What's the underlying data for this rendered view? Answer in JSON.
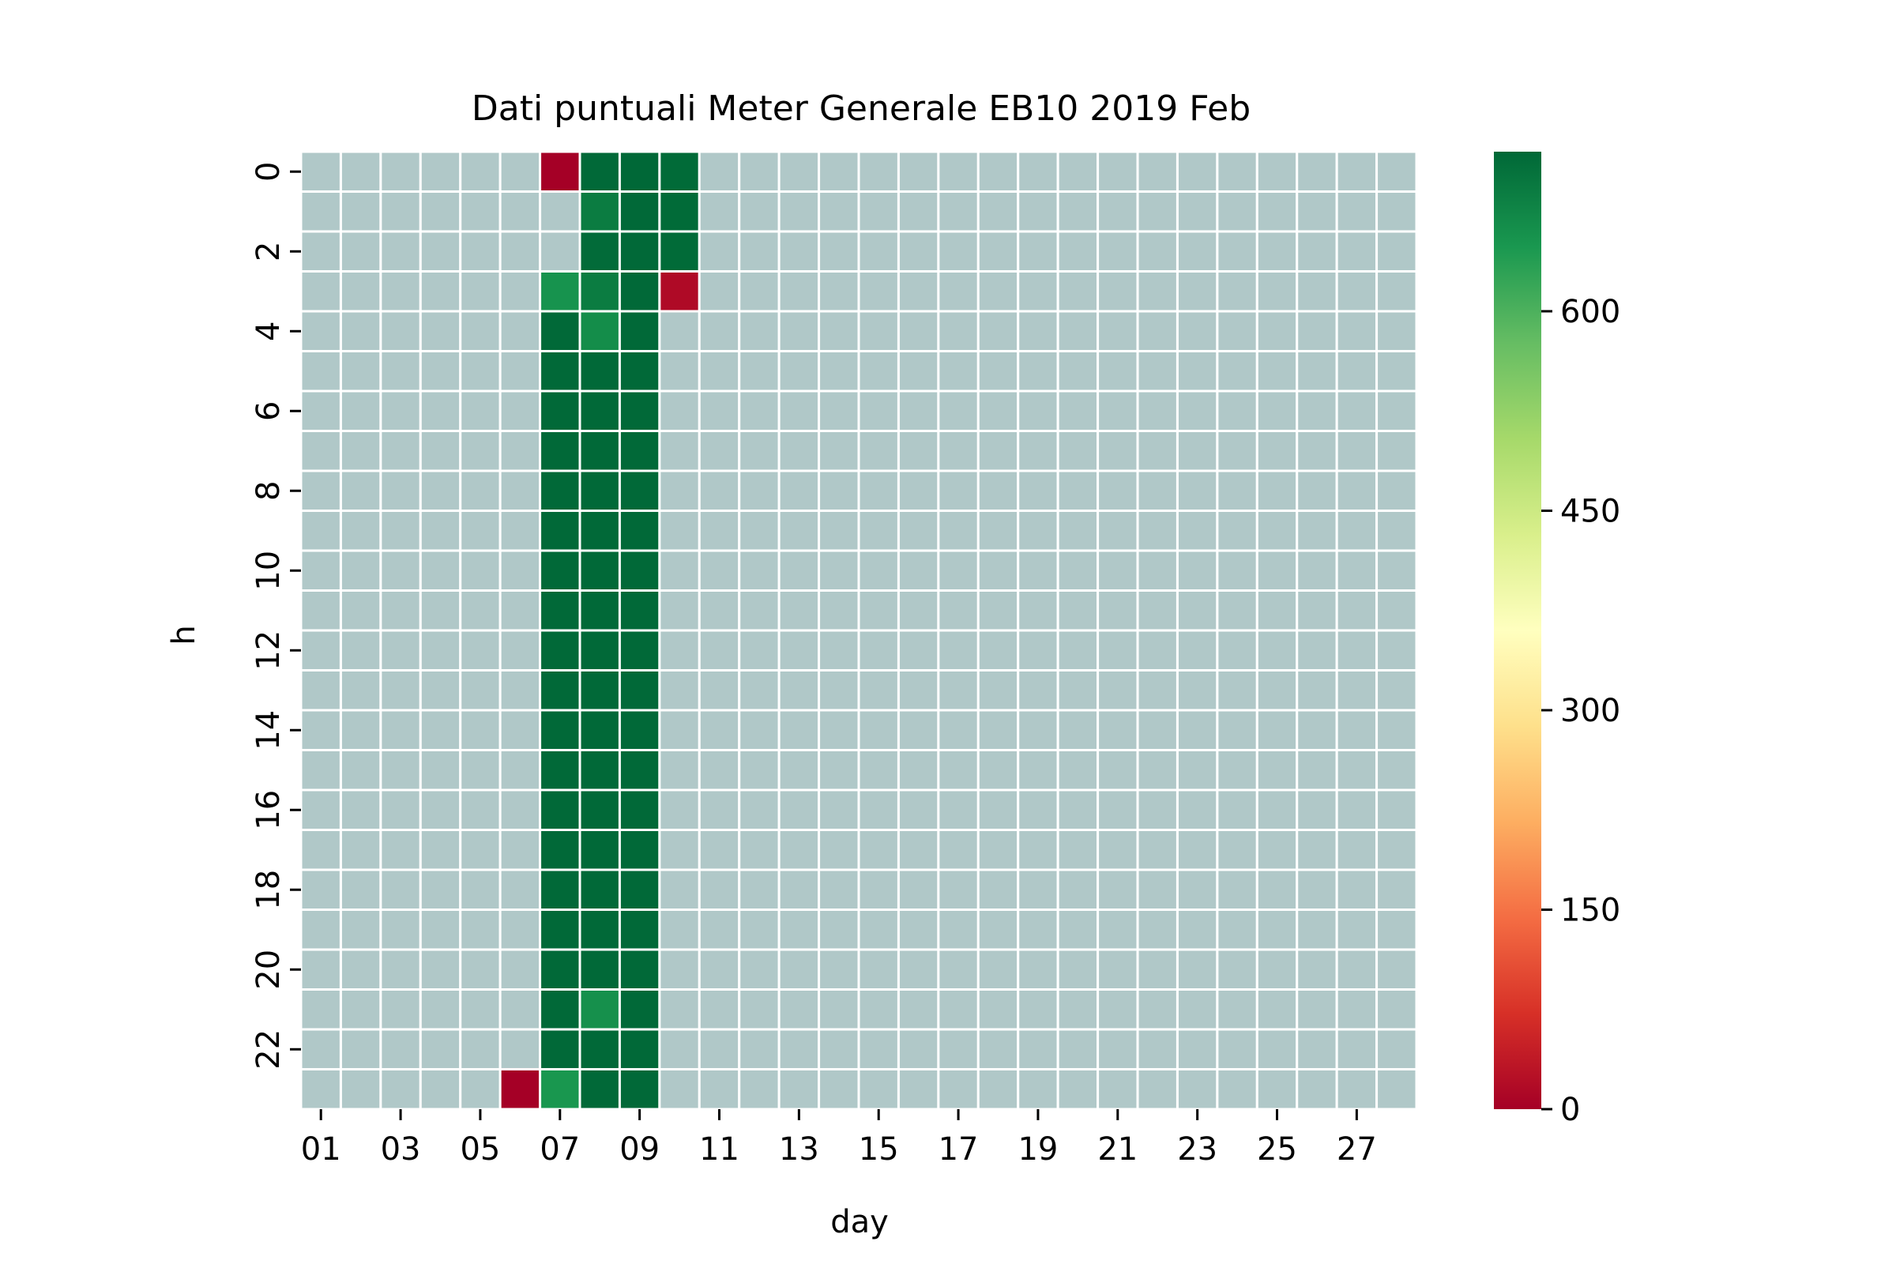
{
  "chart_data": {
    "type": "heatmap",
    "title": "Dati puntuali Meter Generale EB10 2019 Feb",
    "xlabel": "day",
    "ylabel": "h",
    "x_categories": [
      "01",
      "02",
      "03",
      "04",
      "05",
      "06",
      "07",
      "08",
      "09",
      "10",
      "11",
      "12",
      "13",
      "14",
      "15",
      "16",
      "17",
      "18",
      "19",
      "20",
      "21",
      "22",
      "23",
      "24",
      "25",
      "26",
      "27",
      "28"
    ],
    "x_tick_labels": [
      "01",
      "03",
      "05",
      "07",
      "09",
      "11",
      "13",
      "15",
      "17",
      "19",
      "21",
      "23",
      "25",
      "27"
    ],
    "y_categories": [
      "0",
      "1",
      "2",
      "3",
      "4",
      "5",
      "6",
      "7",
      "8",
      "9",
      "10",
      "11",
      "12",
      "13",
      "14",
      "15",
      "16",
      "17",
      "18",
      "19",
      "20",
      "21",
      "22",
      "23"
    ],
    "y_tick_labels": [
      "0",
      "2",
      "4",
      "6",
      "8",
      "10",
      "12",
      "14",
      "16",
      "18",
      "20",
      "22"
    ],
    "missing_color": "#b0c8c8",
    "gridline_color": "#ffffff",
    "colormap": "RdYlGn",
    "colorbar": {
      "min": 0,
      "max": 720,
      "ticks": [
        "0",
        "150",
        "300",
        "450",
        "600"
      ],
      "tick_values": [
        0,
        150,
        300,
        450,
        600
      ]
    },
    "values": [
      {
        "day": "07",
        "h": 0,
        "v": 0
      },
      {
        "day": "08",
        "h": 0,
        "v": 718
      },
      {
        "day": "09",
        "h": 0,
        "v": 720
      },
      {
        "day": "10",
        "h": 0,
        "v": 716
      },
      {
        "day": "08",
        "h": 1,
        "v": 690
      },
      {
        "day": "09",
        "h": 1,
        "v": 718
      },
      {
        "day": "10",
        "h": 1,
        "v": 716
      },
      {
        "day": "08",
        "h": 2,
        "v": 715
      },
      {
        "day": "09",
        "h": 2,
        "v": 718
      },
      {
        "day": "10",
        "h": 2,
        "v": 716
      },
      {
        "day": "07",
        "h": 3,
        "v": 655
      },
      {
        "day": "08",
        "h": 3,
        "v": 690
      },
      {
        "day": "09",
        "h": 3,
        "v": 718
      },
      {
        "day": "10",
        "h": 3,
        "v": 15
      },
      {
        "day": "07",
        "h": 4,
        "v": 718
      },
      {
        "day": "08",
        "h": 4,
        "v": 665
      },
      {
        "day": "09",
        "h": 4,
        "v": 718
      },
      {
        "day": "07",
        "h": 5,
        "v": 718
      },
      {
        "day": "08",
        "h": 5,
        "v": 718
      },
      {
        "day": "09",
        "h": 5,
        "v": 718
      },
      {
        "day": "07",
        "h": 6,
        "v": 718
      },
      {
        "day": "08",
        "h": 6,
        "v": 718
      },
      {
        "day": "09",
        "h": 6,
        "v": 718
      },
      {
        "day": "07",
        "h": 7,
        "v": 718
      },
      {
        "day": "08",
        "h": 7,
        "v": 718
      },
      {
        "day": "09",
        "h": 7,
        "v": 718
      },
      {
        "day": "07",
        "h": 8,
        "v": 718
      },
      {
        "day": "08",
        "h": 8,
        "v": 718
      },
      {
        "day": "09",
        "h": 8,
        "v": 718
      },
      {
        "day": "07",
        "h": 9,
        "v": 718
      },
      {
        "day": "08",
        "h": 9,
        "v": 718
      },
      {
        "day": "09",
        "h": 9,
        "v": 718
      },
      {
        "day": "07",
        "h": 10,
        "v": 718
      },
      {
        "day": "08",
        "h": 10,
        "v": 718
      },
      {
        "day": "09",
        "h": 10,
        "v": 718
      },
      {
        "day": "07",
        "h": 11,
        "v": 718
      },
      {
        "day": "08",
        "h": 11,
        "v": 718
      },
      {
        "day": "09",
        "h": 11,
        "v": 718
      },
      {
        "day": "07",
        "h": 12,
        "v": 718
      },
      {
        "day": "08",
        "h": 12,
        "v": 718
      },
      {
        "day": "09",
        "h": 12,
        "v": 718
      },
      {
        "day": "07",
        "h": 13,
        "v": 718
      },
      {
        "day": "08",
        "h": 13,
        "v": 718
      },
      {
        "day": "09",
        "h": 13,
        "v": 718
      },
      {
        "day": "07",
        "h": 14,
        "v": 718
      },
      {
        "day": "08",
        "h": 14,
        "v": 718
      },
      {
        "day": "09",
        "h": 14,
        "v": 718
      },
      {
        "day": "07",
        "h": 15,
        "v": 718
      },
      {
        "day": "08",
        "h": 15,
        "v": 718
      },
      {
        "day": "09",
        "h": 15,
        "v": 718
      },
      {
        "day": "07",
        "h": 16,
        "v": 718
      },
      {
        "day": "08",
        "h": 16,
        "v": 718
      },
      {
        "day": "09",
        "h": 16,
        "v": 718
      },
      {
        "day": "07",
        "h": 17,
        "v": 718
      },
      {
        "day": "08",
        "h": 17,
        "v": 718
      },
      {
        "day": "09",
        "h": 17,
        "v": 718
      },
      {
        "day": "07",
        "h": 18,
        "v": 718
      },
      {
        "day": "08",
        "h": 18,
        "v": 718
      },
      {
        "day": "09",
        "h": 18,
        "v": 718
      },
      {
        "day": "07",
        "h": 19,
        "v": 718
      },
      {
        "day": "08",
        "h": 19,
        "v": 718
      },
      {
        "day": "09",
        "h": 19,
        "v": 718
      },
      {
        "day": "07",
        "h": 20,
        "v": 718
      },
      {
        "day": "08",
        "h": 20,
        "v": 718
      },
      {
        "day": "09",
        "h": 20,
        "v": 718
      },
      {
        "day": "07",
        "h": 21,
        "v": 718
      },
      {
        "day": "08",
        "h": 21,
        "v": 660
      },
      {
        "day": "09",
        "h": 21,
        "v": 718
      },
      {
        "day": "07",
        "h": 22,
        "v": 718
      },
      {
        "day": "08",
        "h": 22,
        "v": 718
      },
      {
        "day": "09",
        "h": 22,
        "v": 718
      },
      {
        "day": "06",
        "h": 23,
        "v": 0
      },
      {
        "day": "07",
        "h": 23,
        "v": 650
      },
      {
        "day": "08",
        "h": 23,
        "v": 718
      },
      {
        "day": "09",
        "h": 23,
        "v": 718
      }
    ]
  }
}
